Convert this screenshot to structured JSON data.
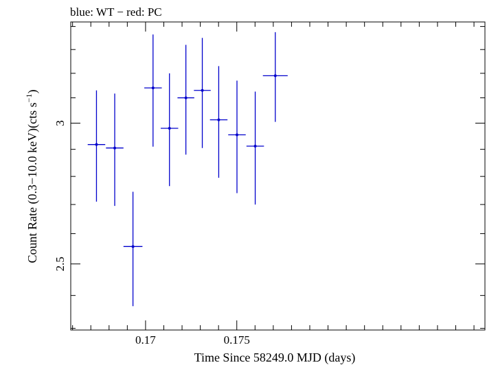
{
  "chart_data": {
    "type": "scatter",
    "header": "blue: WT − red: PC",
    "xlabel": "Time Since 58249.0 MJD (days)",
    "ylabel_main": "Count Rate (0.3−10.0 keV)(cts s",
    "ylabel_sup": "−1",
    "ylabel_close": ")",
    "xlim": [
      0.1659,
      0.1886
    ],
    "ylim": [
      2.295,
      3.42
    ],
    "y_scale": "log",
    "x_ticks": [
      {
        "value": 0.17,
        "label": "0.17"
      },
      {
        "value": 0.175,
        "label": "0.175"
      }
    ],
    "y_ticks": [
      {
        "value": 2.5,
        "label": "2.5"
      },
      {
        "value": 3,
        "label": "3"
      }
    ],
    "grid": false,
    "series": [
      {
        "color": "#0000cc",
        "points": [
          {
            "x": 0.16731,
            "xerr": 0.00048,
            "y": 2.918,
            "ylo": 2.71,
            "yhi": 3.13
          },
          {
            "x": 0.16831,
            "xerr": 0.00048,
            "y": 2.905,
            "ylo": 2.695,
            "yhi": 3.117
          },
          {
            "x": 0.16931,
            "xerr": 0.00052,
            "y": 2.557,
            "ylo": 2.367,
            "yhi": 2.745
          },
          {
            "x": 0.17041,
            "xerr": 0.00048,
            "y": 3.14,
            "ylo": 2.91,
            "yhi": 3.365
          },
          {
            "x": 0.17131,
            "xerr": 0.00048,
            "y": 2.98,
            "ylo": 2.765,
            "yhi": 3.2
          },
          {
            "x": 0.17221,
            "xerr": 0.00046,
            "y": 3.1,
            "ylo": 2.88,
            "yhi": 3.32
          },
          {
            "x": 0.17311,
            "xerr": 0.00046,
            "y": 3.13,
            "ylo": 2.905,
            "yhi": 3.35
          },
          {
            "x": 0.17401,
            "xerr": 0.00048,
            "y": 3.013,
            "ylo": 2.795,
            "yhi": 3.23
          },
          {
            "x": 0.17501,
            "xerr": 0.00048,
            "y": 2.955,
            "ylo": 2.74,
            "yhi": 3.17
          },
          {
            "x": 0.17601,
            "xerr": 0.00048,
            "y": 2.912,
            "ylo": 2.7,
            "yhi": 3.125
          },
          {
            "x": 0.17711,
            "xerr": 0.00068,
            "y": 3.19,
            "ylo": 3.005,
            "yhi": 3.375
          }
        ]
      }
    ]
  }
}
